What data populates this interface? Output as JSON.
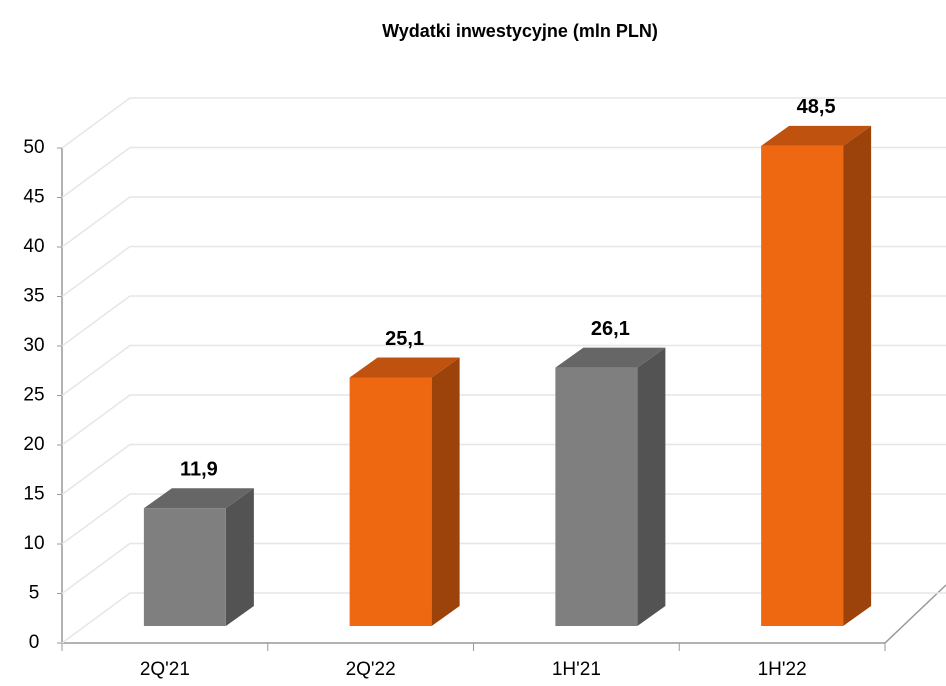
{
  "chart_data": {
    "type": "bar3d",
    "title": "Wydatki inwestycyjne (mln PLN)",
    "categories": [
      "2Q'21",
      "2Q'22",
      "1H'21",
      "1H'22"
    ],
    "values": [
      11.9,
      25.1,
      26.1,
      48.5
    ],
    "value_labels": [
      "11,9",
      "25,1",
      "26,1",
      "48,5"
    ],
    "colors": [
      "#7f7f7f",
      "#ee6711",
      "#7f7f7f",
      "#ee6711"
    ],
    "ylim": [
      0,
      50
    ],
    "yticks": [
      0,
      5,
      10,
      15,
      20,
      25,
      30,
      35,
      40,
      45,
      50
    ],
    "grid": true
  }
}
